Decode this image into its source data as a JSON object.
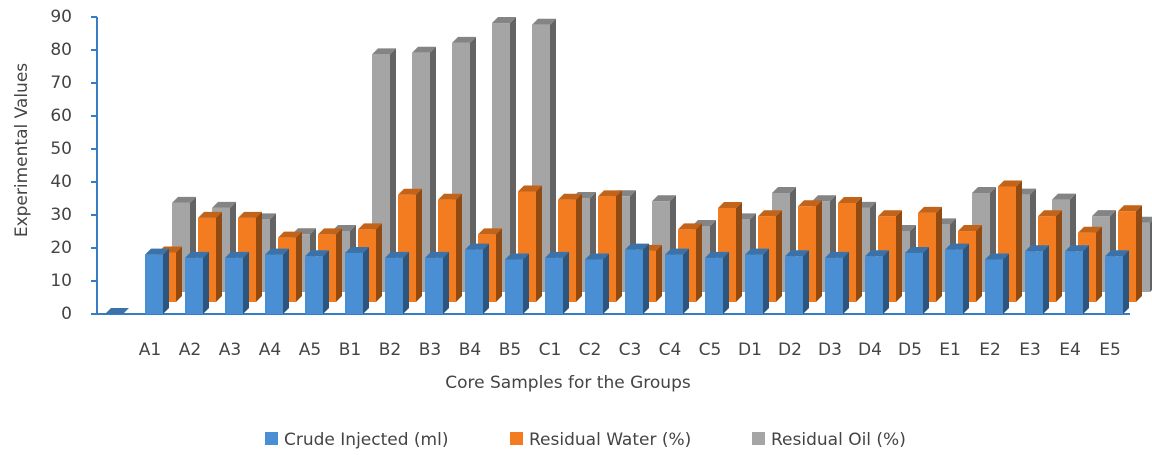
{
  "chart_data": {
    "type": "bar3d",
    "x_label": "Core Samples for the Groups",
    "y_label": "Experimental Values",
    "categories": [
      null,
      "A1",
      "A2",
      "A3",
      "A4",
      "A5",
      "B1",
      "B2",
      "B3",
      "B4",
      "B5",
      "C1",
      "C2",
      "C3",
      "C4",
      "C5",
      "D1",
      "D2",
      "D3",
      "D4",
      "D5",
      "E1",
      "E2",
      "E3",
      "E4",
      "E5"
    ],
    "series": [
      {
        "name": "Crude Injected (ml)",
        "color": "#4a8fd4",
        "values": [
          0,
          18,
          17,
          17,
          18,
          17.5,
          18.5,
          17,
          17,
          19.5,
          16.5,
          17,
          16.5,
          19.5,
          18,
          17,
          18,
          17.5,
          17,
          17.5,
          18.5,
          19.5,
          16.5,
          19,
          19,
          17.5
        ]
      },
      {
        "name": "Residual Water (%)",
        "color": "#f37c20",
        "values": [
          null,
          15,
          25.5,
          25.5,
          19.5,
          20.5,
          22,
          32.5,
          31,
          20.5,
          33.5,
          31,
          32,
          15.5,
          22,
          28.5,
          26,
          29,
          30,
          26,
          27,
          21.5,
          35,
          26,
          21,
          27.5
        ]
      },
      {
        "name": "Residual Oil (%)",
        "color": "#a5a5a5",
        "values": [
          null,
          27,
          25.5,
          22,
          17.5,
          18.5,
          72,
          72.5,
          75.5,
          81.5,
          81,
          28.5,
          29,
          27.5,
          20,
          22,
          30,
          27.5,
          25.5,
          18.5,
          20.5,
          30,
          29.5,
          28,
          23,
          21
        ]
      }
    ],
    "ylim": [
      0,
      90
    ],
    "yticks": [
      0,
      10,
      20,
      30,
      40,
      50,
      60,
      70,
      80,
      90
    ],
    "legend": "bottom"
  }
}
